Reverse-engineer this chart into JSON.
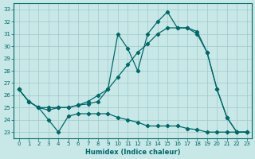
{
  "xlabel": "Humidex (Indice chaleur)",
  "background_color": "#c8e8e8",
  "grid_color": "#a0c8c8",
  "line_color": "#006868",
  "xlim": [
    -0.5,
    23.5
  ],
  "ylim": [
    22.5,
    33.5
  ],
  "yticks": [
    23,
    24,
    25,
    26,
    27,
    28,
    29,
    30,
    31,
    32,
    33
  ],
  "xticks": [
    0,
    1,
    2,
    3,
    4,
    5,
    6,
    7,
    8,
    9,
    10,
    11,
    12,
    13,
    14,
    15,
    16,
    17,
    18,
    19,
    20,
    21,
    22,
    23
  ],
  "line1_x": [
    0,
    1,
    2,
    3,
    4,
    5,
    6,
    7,
    8,
    9,
    10,
    11,
    12,
    13,
    14,
    15,
    16,
    17,
    18,
    19,
    20,
    21,
    22,
    23
  ],
  "line1_y": [
    26.5,
    25.5,
    25.0,
    25.0,
    25.0,
    25.0,
    25.2,
    25.5,
    26.0,
    26.5,
    27.5,
    28.5,
    29.5,
    30.2,
    31.0,
    31.5,
    31.5,
    31.5,
    31.0,
    29.5,
    26.5,
    24.2,
    23.0,
    23.0
  ],
  "line2_x": [
    0,
    1,
    2,
    3,
    4,
    5,
    6,
    7,
    8,
    9,
    10,
    11,
    12,
    13,
    14,
    15,
    16,
    17,
    18,
    19,
    20,
    21,
    22,
    23
  ],
  "line2_y": [
    26.5,
    25.5,
    25.0,
    24.8,
    25.0,
    25.0,
    25.2,
    25.3,
    25.5,
    26.5,
    31.0,
    29.8,
    28.0,
    31.0,
    32.0,
    32.8,
    31.5,
    31.5,
    31.2,
    29.5,
    26.5,
    24.2,
    23.0,
    23.0
  ],
  "line3_x": [
    0,
    1,
    2,
    3,
    4,
    5,
    6,
    7,
    8,
    9,
    10,
    11,
    12,
    13,
    14,
    15,
    16,
    17,
    18,
    19,
    20,
    21,
    22,
    23
  ],
  "line3_y": [
    26.5,
    25.5,
    25.0,
    24.0,
    23.0,
    24.3,
    24.5,
    24.5,
    24.5,
    24.5,
    24.2,
    24.0,
    23.8,
    23.5,
    23.5,
    23.5,
    23.5,
    23.3,
    23.2,
    23.0,
    23.0,
    23.0,
    23.0,
    23.0
  ]
}
